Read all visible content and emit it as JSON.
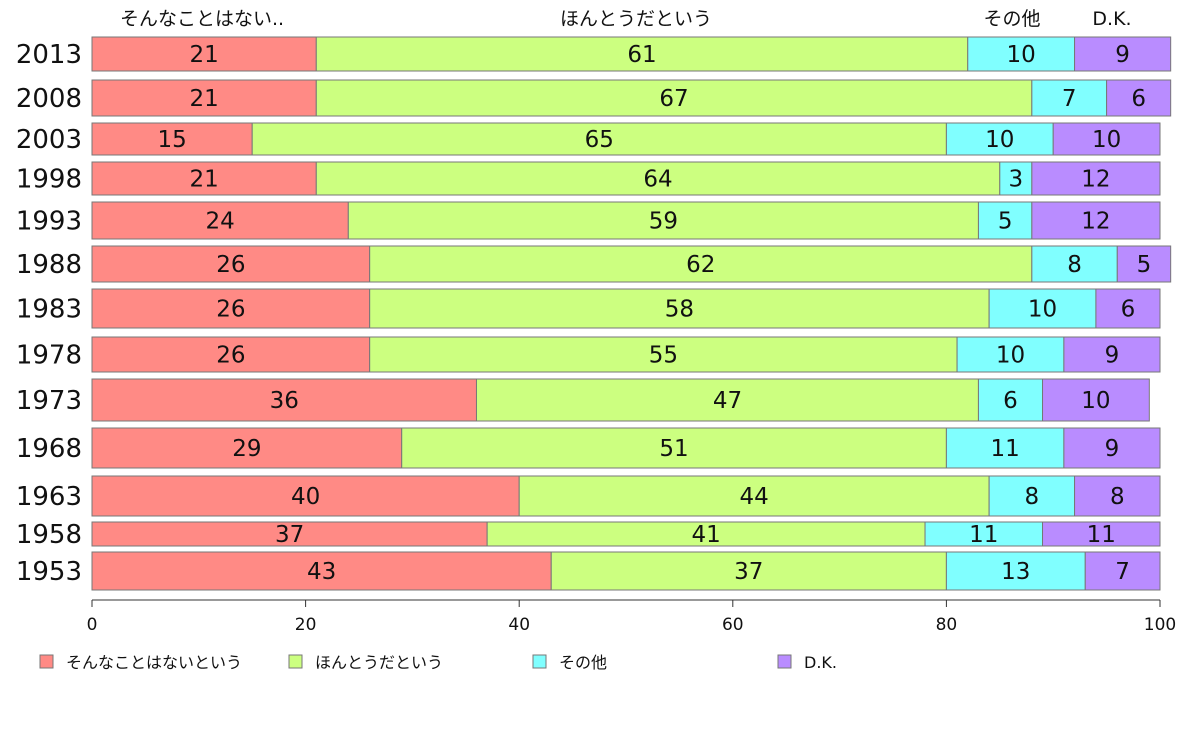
{
  "chart_data": {
    "type": "bar",
    "orientation": "horizontal",
    "stacked": true,
    "xlim": [
      0,
      100
    ],
    "xticks": [
      0,
      20,
      40,
      60,
      80,
      100
    ],
    "categories": [
      "2013",
      "2008",
      "2003",
      "1998",
      "1993",
      "1988",
      "1983",
      "1978",
      "1973",
      "1968",
      "1963",
      "1958",
      "1953"
    ],
    "series": [
      {
        "name": "そんなことはないという",
        "color": "#ff8a85",
        "values": [
          21,
          21,
          15,
          21,
          24,
          26,
          26,
          26,
          36,
          29,
          40,
          37,
          43
        ]
      },
      {
        "name": "ほんとうだという",
        "color": "#ccff80",
        "values": [
          61,
          67,
          65,
          64,
          59,
          62,
          58,
          55,
          47,
          51,
          44,
          41,
          37
        ]
      },
      {
        "name": "その他",
        "color": "#80ffff",
        "values": [
          10,
          7,
          10,
          3,
          5,
          8,
          10,
          10,
          6,
          11,
          8,
          11,
          13
        ]
      },
      {
        "name": "D.K.",
        "color": "#b98cff",
        "values": [
          9,
          6,
          10,
          12,
          12,
          5,
          6,
          9,
          10,
          9,
          8,
          11,
          7
        ]
      }
    ],
    "top_labels": [
      "そんなことはない..",
      "ほんとうだという",
      "その他",
      "D.K."
    ],
    "legend_position": "bottom",
    "grid": false
  }
}
